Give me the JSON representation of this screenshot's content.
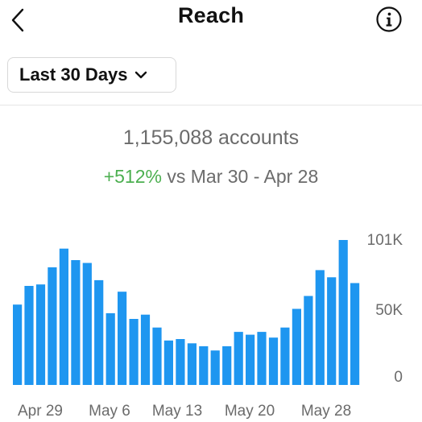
{
  "header": {
    "title": "Reach",
    "back_icon": "chevron-left-icon",
    "info_icon": "info-icon"
  },
  "filter": {
    "label": "Last 30 Days",
    "icon": "chevron-down-icon"
  },
  "summary": {
    "accounts": "1,155,088 accounts",
    "change": "+512%",
    "compare_text": "vs Mar 30 - Apr 28"
  },
  "colors": {
    "bar": "#1e96f0",
    "positive": "#4caf50",
    "muted": "#6b6b6b"
  },
  "chart_data": {
    "type": "bar",
    "x_tick_labels": [
      "Apr 29",
      "May 6",
      "May 13",
      "May 20",
      "May 28"
    ],
    "y_tick_labels": [
      "101K",
      "50K",
      "0"
    ],
    "ylim": [
      0,
      101000
    ],
    "values": [
      56000,
      69000,
      70000,
      82000,
      95000,
      87000,
      85000,
      73000,
      50000,
      65000,
      46000,
      49000,
      40000,
      31000,
      32000,
      29000,
      27000,
      24000,
      27000,
      37000,
      35000,
      37000,
      33000,
      40000,
      53000,
      62000,
      80000,
      75000,
      101000,
      71000
    ]
  }
}
